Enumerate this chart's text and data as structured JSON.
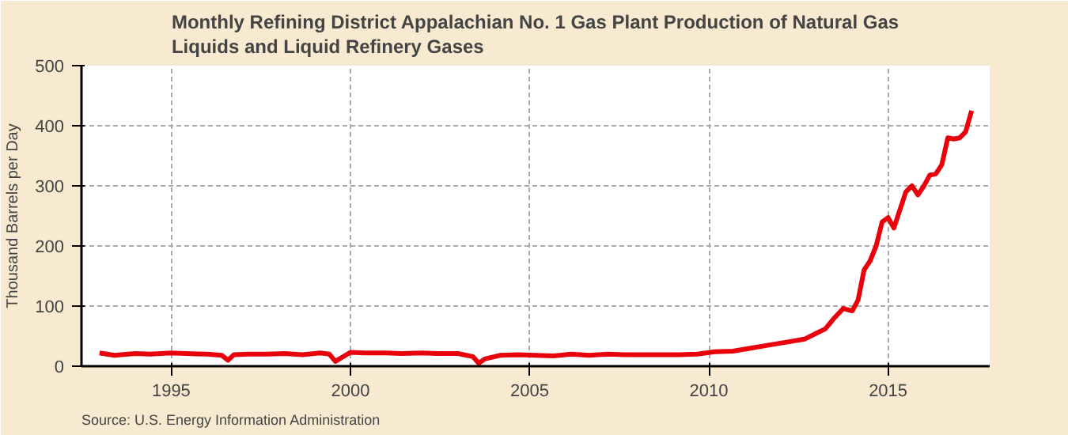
{
  "chart_data": {
    "type": "line",
    "title": "Monthly Refining District Appalachian No. 1 Gas Plant Production of Natural Gas Liquids and Liquid Refinery Gases",
    "ylabel": "Thousand Barrels per Day",
    "annotations": [
      "Source: U.S. Energy Information Administration"
    ],
    "x": [
      "1993-01",
      "1993-06",
      "1994-01",
      "1994-06",
      "1995-01",
      "1995-06",
      "1996-01",
      "1996-06",
      "1996-08",
      "1996-10",
      "1997-03",
      "1997-09",
      "1998-03",
      "1998-09",
      "1999-03",
      "1999-06",
      "1999-08",
      "2000-01",
      "2000-06",
      "2001-01",
      "2001-06",
      "2002-01",
      "2002-06",
      "2003-01",
      "2003-06",
      "2003-08",
      "2003-10",
      "2004-03",
      "2004-09",
      "2005-03",
      "2005-09",
      "2006-03",
      "2006-09",
      "2007-03",
      "2007-09",
      "2008-03",
      "2008-09",
      "2009-03",
      "2009-09",
      "2010-03",
      "2010-09",
      "2011-03",
      "2011-09",
      "2012-03",
      "2012-09",
      "2013-01",
      "2013-04",
      "2013-07",
      "2013-10",
      "2014-01",
      "2014-03",
      "2014-05",
      "2014-07",
      "2014-09",
      "2014-11",
      "2015-01",
      "2015-03",
      "2015-05",
      "2015-07",
      "2015-09",
      "2015-11",
      "2016-01",
      "2016-03",
      "2016-05",
      "2016-07",
      "2016-09",
      "2016-11",
      "2017-01",
      "2017-03",
      "2017-05"
    ],
    "series": [
      {
        "color": "#e8000b",
        "values": [
          22,
          18,
          21,
          20,
          22,
          21,
          20,
          18,
          10,
          19,
          20,
          20,
          21,
          19,
          22,
          20,
          8,
          23,
          22,
          22,
          21,
          22,
          21,
          21,
          16,
          5,
          12,
          18,
          19,
          18,
          17,
          20,
          18,
          20,
          19,
          19,
          19,
          19,
          20,
          24,
          25,
          30,
          35,
          40,
          45,
          55,
          62,
          80,
          96,
          92,
          110,
          160,
          175,
          200,
          240,
          247,
          230,
          260,
          290,
          300,
          285,
          300,
          318,
          320,
          335,
          380,
          378,
          380,
          390,
          425
        ]
      }
    ],
    "xlim": [
      "1992-07",
      "2017-11"
    ],
    "xticks": [
      "1995",
      "2000",
      "2005",
      "2010",
      "2015"
    ],
    "ylim": [
      0,
      500
    ],
    "yticks": [
      0,
      100,
      200,
      300,
      400,
      500
    ],
    "grid": true,
    "line_style": "solid"
  }
}
